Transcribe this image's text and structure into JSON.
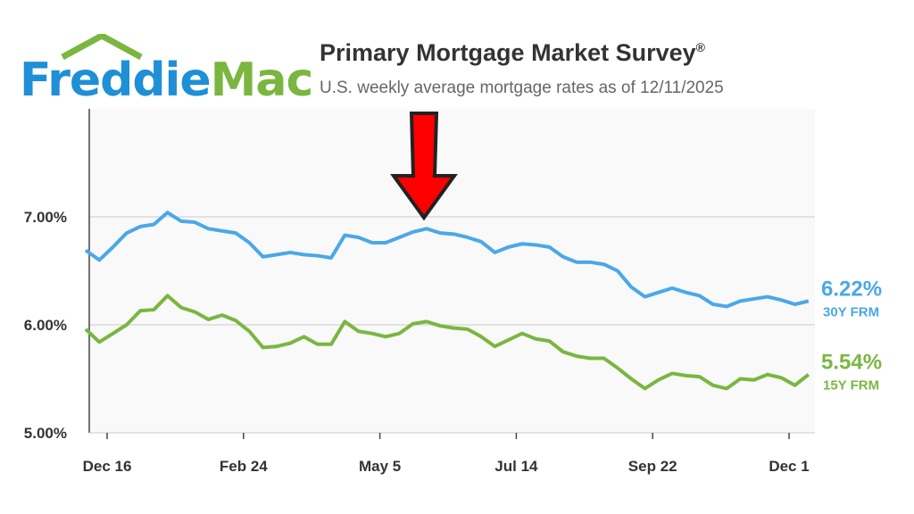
{
  "brand": {
    "logo_text_1": "Freddie",
    "logo_text_2": "Mac"
  },
  "header": {
    "title": "Primary Mortgage Market Survey",
    "registered": "®",
    "subtitle": "U.S. weekly average mortgage rates as of 12/11/2025"
  },
  "colors": {
    "30y": "#4aa8e8",
    "15y": "#7ab640",
    "arrow": "#ff0000",
    "logo_blue": "#1f8fd6",
    "logo_green": "#7ab640"
  },
  "annotation": {
    "type": "red-down-arrow",
    "points_to_date": "2025-05-29"
  },
  "chart_data": {
    "type": "line",
    "title": "Primary Mortgage Market Survey",
    "subtitle": "U.S. weekly average mortgage rates as of 12/11/2025",
    "xlabel": "",
    "ylabel": "",
    "ylim": [
      5.0,
      8.0
    ],
    "y_ticks": [
      "5.00%",
      "6.00%",
      "7.00%"
    ],
    "y_tick_values": [
      5,
      6,
      7
    ],
    "x_ticks": [
      "Dec 16",
      "Feb 24",
      "May 5",
      "Jul 14",
      "Sep 22",
      "Dec 1"
    ],
    "x_tick_dates": [
      "2024-12-16",
      "2025-02-24",
      "2025-05-05",
      "2025-07-14",
      "2025-09-22",
      "2025-12-01"
    ],
    "grid": "horizontal",
    "x_start": "2024-12-05",
    "x_step_days": 7,
    "series": [
      {
        "name": "30Y FRM",
        "end_label": "6.22%",
        "color": "#4aa8e8",
        "values": [
          6.69,
          6.6,
          6.72,
          6.85,
          6.91,
          6.93,
          7.04,
          6.96,
          6.95,
          6.89,
          6.87,
          6.85,
          6.76,
          6.63,
          6.65,
          6.67,
          6.65,
          6.64,
          6.62,
          6.83,
          6.81,
          6.76,
          6.76,
          6.81,
          6.86,
          6.89,
          6.85,
          6.84,
          6.81,
          6.77,
          6.67,
          6.72,
          6.75,
          6.74,
          6.72,
          6.63,
          6.58,
          6.58,
          6.56,
          6.5,
          6.35,
          6.26,
          6.3,
          6.34,
          6.3,
          6.27,
          6.19,
          6.17,
          6.22,
          6.24,
          6.26,
          6.23,
          6.19,
          6.22
        ]
      },
      {
        "name": "15Y FRM",
        "end_label": "5.54%",
        "color": "#7ab640",
        "values": [
          5.96,
          5.84,
          5.92,
          6.0,
          6.13,
          6.14,
          6.27,
          6.16,
          6.12,
          6.05,
          6.09,
          6.04,
          5.94,
          5.79,
          5.8,
          5.83,
          5.89,
          5.82,
          5.82,
          6.03,
          5.94,
          5.92,
          5.89,
          5.92,
          6.01,
          6.03,
          5.99,
          5.97,
          5.96,
          5.89,
          5.8,
          5.86,
          5.92,
          5.87,
          5.85,
          5.75,
          5.71,
          5.69,
          5.69,
          5.6,
          5.5,
          5.41,
          5.49,
          5.55,
          5.53,
          5.52,
          5.44,
          5.41,
          5.5,
          5.49,
          5.54,
          5.51,
          5.44,
          5.54
        ]
      }
    ]
  }
}
